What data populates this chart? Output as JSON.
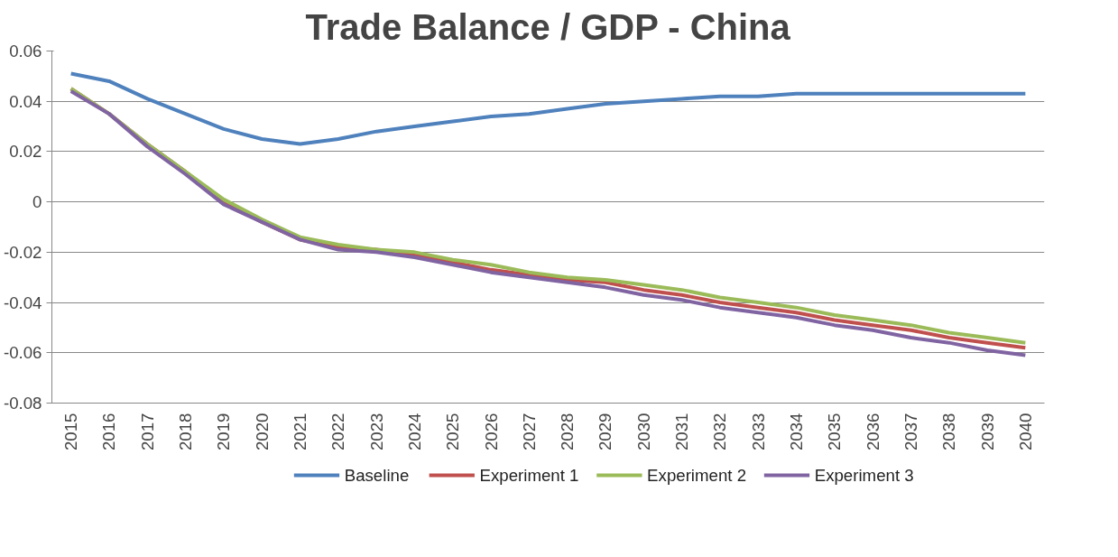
{
  "chart_data": {
    "type": "line",
    "title": "Trade Balance / GDP - China",
    "categories": [
      "2015",
      "2016",
      "2017",
      "2018",
      "2019",
      "2020",
      "2021",
      "2022",
      "2023",
      "2024",
      "2025",
      "2026",
      "2027",
      "2028",
      "2029",
      "2030",
      "2031",
      "2032",
      "2033",
      "2034",
      "2035",
      "2036",
      "2037",
      "2038",
      "2039",
      "2040"
    ],
    "series": [
      {
        "name": "Baseline",
        "color": "#4f81bd",
        "values": [
          0.051,
          0.048,
          0.041,
          0.035,
          0.029,
          0.025,
          0.023,
          0.025,
          0.028,
          0.03,
          0.032,
          0.034,
          0.035,
          0.037,
          0.039,
          0.04,
          0.041,
          0.042,
          0.042,
          0.043,
          0.043,
          0.043,
          0.043,
          0.043,
          0.043,
          0.043
        ]
      },
      {
        "name": "Experiment 1",
        "color": "#c0504d",
        "values": [
          0.045,
          0.035,
          0.023,
          0.012,
          0.0,
          -0.008,
          -0.015,
          -0.018,
          -0.019,
          -0.021,
          -0.024,
          -0.027,
          -0.029,
          -0.031,
          -0.032,
          -0.035,
          -0.037,
          -0.04,
          -0.042,
          -0.044,
          -0.047,
          -0.049,
          -0.051,
          -0.054,
          -0.056,
          -0.058
        ]
      },
      {
        "name": "Experiment 2",
        "color": "#9bbb59",
        "values": [
          0.045,
          0.035,
          0.023,
          0.012,
          0.001,
          -0.007,
          -0.014,
          -0.017,
          -0.019,
          -0.02,
          -0.023,
          -0.025,
          -0.028,
          -0.03,
          -0.031,
          -0.033,
          -0.035,
          -0.038,
          -0.04,
          -0.042,
          -0.045,
          -0.047,
          -0.049,
          -0.052,
          -0.054,
          -0.056
        ]
      },
      {
        "name": "Experiment 3",
        "color": "#8064a2",
        "values": [
          0.044,
          0.035,
          0.022,
          0.011,
          -0.001,
          -0.008,
          -0.015,
          -0.019,
          -0.02,
          -0.022,
          -0.025,
          -0.028,
          -0.03,
          -0.032,
          -0.034,
          -0.037,
          -0.039,
          -0.042,
          -0.044,
          -0.046,
          -0.049,
          -0.051,
          -0.054,
          -0.056,
          -0.059,
          -0.061
        ]
      }
    ],
    "ylim": [
      -0.08,
      0.06
    ],
    "yticks": [
      {
        "value": -0.08,
        "label": "-0.08"
      },
      {
        "value": -0.06,
        "label": "-0.06"
      },
      {
        "value": -0.04,
        "label": "-0.04"
      },
      {
        "value": -0.02,
        "label": "-0.02"
      },
      0,
      {
        "value": 0.02,
        "label": "0.02"
      },
      {
        "value": 0.04,
        "label": "0.04"
      },
      {
        "value": 0.06,
        "label": "0.06"
      }
    ],
    "grid": "y",
    "legend": "bottom",
    "marker": "none",
    "line_style": "solid"
  }
}
